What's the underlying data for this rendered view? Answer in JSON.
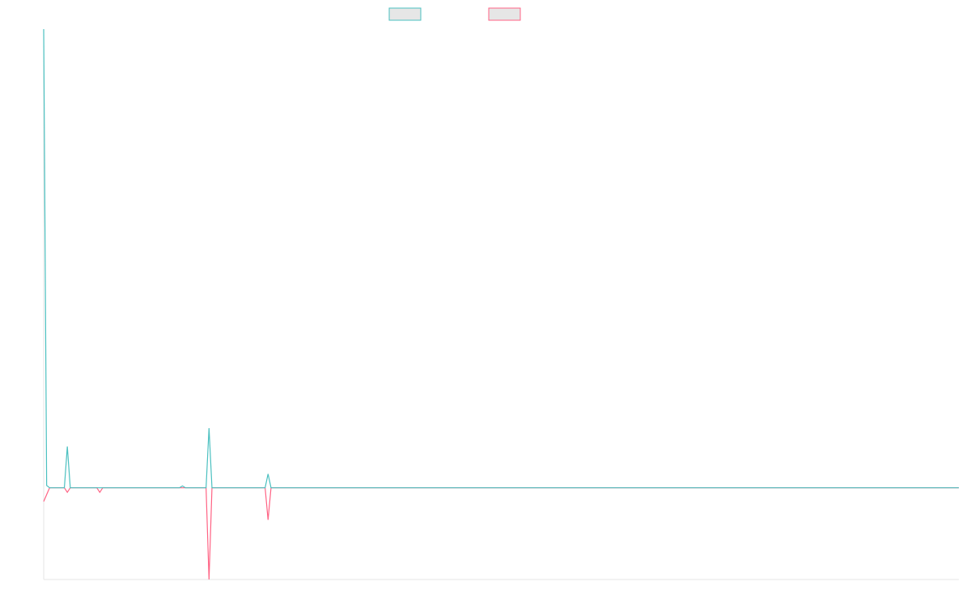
{
  "chart_data": {
    "type": "line",
    "x": [
      0,
      1,
      2,
      7,
      8,
      9,
      18,
      19,
      20,
      46,
      47,
      48,
      55,
      56,
      57,
      75,
      76,
      77,
      310
    ],
    "series": [
      {
        "color": "#4bc0c0",
        "values": [
          100,
          0.5,
          0,
          0,
          9,
          0,
          0,
          0,
          0,
          0,
          0.4,
          0,
          0,
          13,
          0,
          0,
          3,
          0,
          0
        ]
      },
      {
        "color": "#ff6384",
        "values": [
          -3,
          -1.5,
          0,
          0,
          -1,
          0,
          0,
          -1,
          0,
          0,
          0,
          0,
          0,
          -20,
          0,
          0,
          -7,
          0,
          0
        ]
      }
    ],
    "xlim": [
      0,
      310
    ],
    "ylim": [
      -20,
      100
    ]
  }
}
